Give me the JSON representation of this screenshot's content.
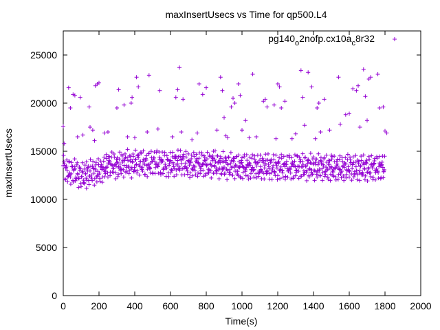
{
  "chart_data": {
    "type": "scatter",
    "title": "maxInsertUsecs vs Time for qp500.L4",
    "xlabel": "Time(s)",
    "ylabel": "maxInsertUsecs",
    "xlim": [
      0,
      2000
    ],
    "ylim": [
      0,
      27500
    ],
    "x_ticks": [
      "0",
      "200",
      "400",
      "600",
      "800",
      "1000",
      "1200",
      "1400",
      "1600",
      "1800",
      "2000"
    ],
    "y_ticks": [
      "0",
      "5000",
      "10000",
      "15000",
      "20000",
      "25000"
    ],
    "grid": false,
    "legend_position": "top-right",
    "series": [
      {
        "name": "pg140o2nofp.cx10ac8r32",
        "name_parts": {
          "base": "pg140",
          "sub1": "o",
          "mid": "2nofp.cx10a",
          "sub2": "c",
          "tail": "8r32"
        },
        "color": "#9400d3",
        "marker": "+",
        "baseline_points": [
          [
            0,
            13500
          ],
          [
            20,
            12900
          ],
          [
            40,
            12800
          ],
          [
            60,
            13000
          ],
          [
            80,
            12600
          ],
          [
            100,
            12500
          ],
          [
            120,
            12400
          ],
          [
            140,
            12600
          ],
          [
            160,
            12900
          ],
          [
            180,
            12800
          ],
          [
            200,
            12900
          ],
          [
            220,
            13100
          ],
          [
            240,
            13400
          ],
          [
            260,
            13700
          ],
          [
            280,
            13600
          ],
          [
            300,
            13400
          ],
          [
            320,
            13600
          ],
          [
            340,
            13700
          ],
          [
            360,
            13800
          ],
          [
            380,
            13600
          ],
          [
            400,
            13700
          ],
          [
            420,
            13900
          ],
          [
            440,
            13800
          ],
          [
            460,
            13600
          ],
          [
            480,
            13700
          ],
          [
            500,
            13800
          ],
          [
            520,
            13900
          ],
          [
            540,
            13800
          ],
          [
            560,
            13700
          ],
          [
            580,
            13600
          ],
          [
            600,
            13600
          ],
          [
            620,
            13700
          ],
          [
            640,
            13800
          ],
          [
            660,
            13900
          ],
          [
            680,
            13700
          ],
          [
            700,
            13600
          ],
          [
            720,
            13500
          ],
          [
            740,
            13700
          ],
          [
            760,
            13600
          ],
          [
            780,
            13700
          ],
          [
            800,
            13600
          ],
          [
            820,
            13500
          ],
          [
            840,
            13700
          ],
          [
            860,
            13600
          ],
          [
            880,
            13500
          ],
          [
            900,
            13600
          ],
          [
            920,
            13400
          ],
          [
            940,
            13500
          ],
          [
            960,
            13500
          ],
          [
            980,
            13300
          ],
          [
            1000,
            13400
          ],
          [
            1020,
            13500
          ],
          [
            1040,
            13300
          ],
          [
            1060,
            13400
          ],
          [
            1080,
            13500
          ],
          [
            1100,
            13300
          ],
          [
            1120,
            13400
          ],
          [
            1140,
            13500
          ],
          [
            1160,
            13300
          ],
          [
            1180,
            13400
          ],
          [
            1200,
            13300
          ],
          [
            1220,
            13400
          ],
          [
            1240,
            13300
          ],
          [
            1260,
            13400
          ],
          [
            1280,
            13300
          ],
          [
            1300,
            13400
          ],
          [
            1320,
            13500
          ],
          [
            1340,
            13400
          ],
          [
            1360,
            13300
          ],
          [
            1380,
            13400
          ],
          [
            1400,
            13400
          ],
          [
            1420,
            13300
          ],
          [
            1440,
            13400
          ],
          [
            1460,
            13300
          ],
          [
            1480,
            13200
          ],
          [
            1500,
            13300
          ],
          [
            1520,
            13200
          ],
          [
            1540,
            13300
          ],
          [
            1560,
            13200
          ],
          [
            1580,
            13300
          ],
          [
            1600,
            13400
          ],
          [
            1620,
            13300
          ],
          [
            1640,
            13200
          ],
          [
            1660,
            13300
          ],
          [
            1680,
            13300
          ],
          [
            1700,
            13200
          ],
          [
            1720,
            13300
          ],
          [
            1740,
            13200
          ],
          [
            1760,
            13300
          ],
          [
            1780,
            13300
          ],
          [
            1800,
            13400
          ]
        ],
        "outlier_points": [
          [
            0,
            17600
          ],
          [
            5,
            15800
          ],
          [
            30,
            21600
          ],
          [
            40,
            19500
          ],
          [
            55,
            20900
          ],
          [
            65,
            20800
          ],
          [
            80,
            16500
          ],
          [
            95,
            20600
          ],
          [
            110,
            16700
          ],
          [
            130,
            13900
          ],
          [
            145,
            19600
          ],
          [
            150,
            17500
          ],
          [
            165,
            17200
          ],
          [
            175,
            16100
          ],
          [
            180,
            21800
          ],
          [
            190,
            22000
          ],
          [
            200,
            22100
          ],
          [
            230,
            16900
          ],
          [
            250,
            17000
          ],
          [
            300,
            19500
          ],
          [
            310,
            21400
          ],
          [
            340,
            19800
          ],
          [
            360,
            16500
          ],
          [
            380,
            20000
          ],
          [
            385,
            20600
          ],
          [
            400,
            16400
          ],
          [
            410,
            22700
          ],
          [
            420,
            21700
          ],
          [
            470,
            17000
          ],
          [
            480,
            22900
          ],
          [
            530,
            17300
          ],
          [
            540,
            21300
          ],
          [
            610,
            16500
          ],
          [
            630,
            20600
          ],
          [
            640,
            21400
          ],
          [
            650,
            23700
          ],
          [
            660,
            17000
          ],
          [
            670,
            20400
          ],
          [
            720,
            16200
          ],
          [
            750,
            16900
          ],
          [
            760,
            22000
          ],
          [
            780,
            20900
          ],
          [
            800,
            21600
          ],
          [
            840,
            15000
          ],
          [
            860,
            17200
          ],
          [
            880,
            22700
          ],
          [
            890,
            21300
          ],
          [
            900,
            18500
          ],
          [
            910,
            16600
          ],
          [
            920,
            16400
          ],
          [
            940,
            19600
          ],
          [
            950,
            20500
          ],
          [
            960,
            20000
          ],
          [
            980,
            22000
          ],
          [
            990,
            20800
          ],
          [
            1000,
            17200
          ],
          [
            1020,
            18200
          ],
          [
            1040,
            16400
          ],
          [
            1060,
            23000
          ],
          [
            1080,
            16500
          ],
          [
            1120,
            20200
          ],
          [
            1130,
            20400
          ],
          [
            1140,
            19600
          ],
          [
            1180,
            19800
          ],
          [
            1190,
            16300
          ],
          [
            1200,
            22000
          ],
          [
            1210,
            21700
          ],
          [
            1220,
            19500
          ],
          [
            1240,
            20200
          ],
          [
            1280,
            16300
          ],
          [
            1300,
            16800
          ],
          [
            1330,
            23400
          ],
          [
            1340,
            20600
          ],
          [
            1350,
            17700
          ],
          [
            1370,
            23200
          ],
          [
            1390,
            21700
          ],
          [
            1410,
            16300
          ],
          [
            1420,
            19500
          ],
          [
            1430,
            20000
          ],
          [
            1440,
            17000
          ],
          [
            1460,
            20400
          ],
          [
            1490,
            17200
          ],
          [
            1500,
            14600
          ],
          [
            1540,
            22700
          ],
          [
            1550,
            17800
          ],
          [
            1580,
            18800
          ],
          [
            1600,
            18900
          ],
          [
            1620,
            21500
          ],
          [
            1640,
            21300
          ],
          [
            1650,
            21800
          ],
          [
            1660,
            17500
          ],
          [
            1680,
            23500
          ],
          [
            1690,
            20700
          ],
          [
            1700,
            18200
          ],
          [
            1710,
            22500
          ],
          [
            1720,
            22700
          ],
          [
            1740,
            14000
          ],
          [
            1760,
            23000
          ],
          [
            1770,
            19500
          ],
          [
            1790,
            19600
          ],
          [
            1800,
            17100
          ],
          [
            1810,
            16900
          ]
        ]
      }
    ]
  }
}
